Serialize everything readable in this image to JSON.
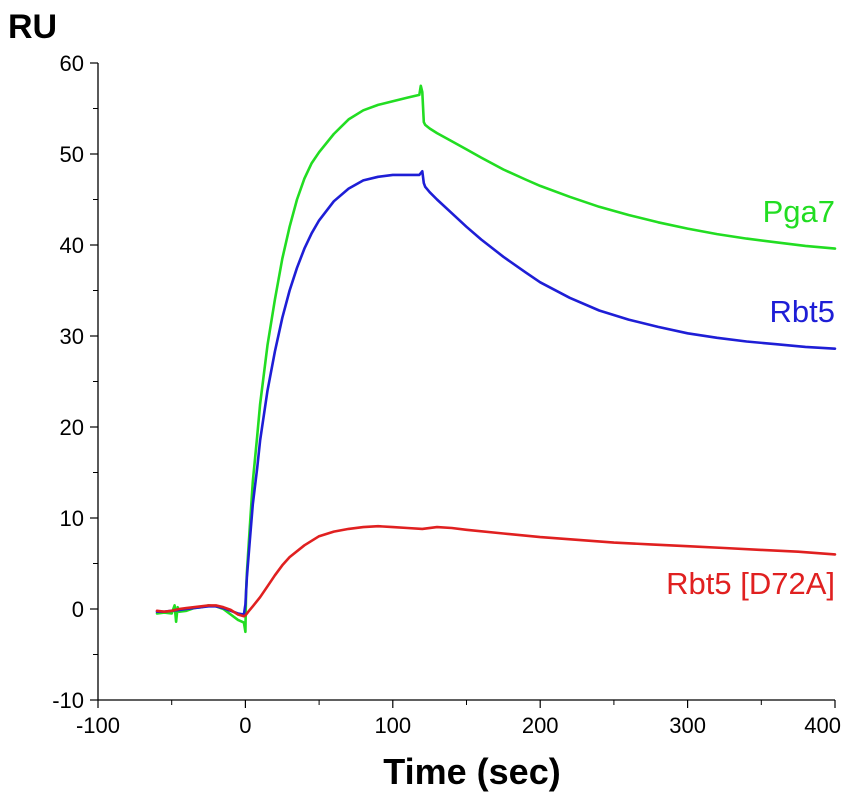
{
  "chart_data": {
    "type": "line",
    "xlabel": "Time (sec)",
    "ylabel": "RU",
    "xlim": [
      -100,
      400
    ],
    "ylim": [
      -10,
      60
    ],
    "x_ticks": [
      -100,
      0,
      100,
      200,
      300,
      400
    ],
    "y_ticks": [
      -10,
      0,
      10,
      20,
      30,
      40,
      50,
      60
    ],
    "grid": false,
    "legend": "inline labels at right end of each curve",
    "series": [
      {
        "name": "Pga7",
        "color": "#22dd22",
        "x": [
          -60,
          -55,
          -50,
          -48,
          -47,
          -46,
          -45,
          -40,
          -35,
          -30,
          -25,
          -20,
          -15,
          -10,
          -5,
          -1,
          0,
          0.5,
          1,
          3,
          5,
          8,
          10,
          15,
          20,
          25,
          30,
          35,
          40,
          45,
          50,
          60,
          70,
          80,
          90,
          100,
          110,
          118,
          119,
          120,
          121,
          122,
          125,
          130,
          140,
          150,
          160,
          175,
          190,
          200,
          220,
          240,
          260,
          280,
          300,
          320,
          340,
          360,
          380,
          400
        ],
        "y": [
          -0.5,
          -0.4,
          -0.5,
          0.4,
          -1.4,
          0.2,
          -0.3,
          -0.2,
          0.1,
          0.2,
          0.4,
          0.3,
          0.0,
          -0.6,
          -1.2,
          -1.5,
          -2.5,
          2.0,
          4.0,
          9.0,
          14.0,
          19.0,
          22.5,
          29.0,
          34.0,
          38.5,
          42.0,
          45.0,
          47.3,
          49.0,
          50.2,
          52.2,
          53.8,
          54.8,
          55.4,
          55.8,
          56.2,
          56.5,
          57.5,
          56.8,
          53.5,
          53.2,
          52.8,
          52.3,
          51.4,
          50.5,
          49.6,
          48.3,
          47.2,
          46.5,
          45.3,
          44.2,
          43.3,
          42.5,
          41.8,
          41.2,
          40.7,
          40.3,
          39.9,
          39.6
        ]
      },
      {
        "name": "Rbt5",
        "color": "#1e1ed6",
        "x": [
          -60,
          -55,
          -50,
          -45,
          -40,
          -35,
          -30,
          -25,
          -20,
          -15,
          -10,
          -5,
          -1,
          0,
          1,
          3,
          5,
          8,
          10,
          15,
          20,
          25,
          30,
          35,
          40,
          45,
          50,
          60,
          70,
          80,
          90,
          100,
          110,
          118,
          120,
          121,
          122,
          125,
          130,
          140,
          150,
          160,
          175,
          190,
          200,
          220,
          240,
          260,
          280,
          300,
          320,
          340,
          360,
          380,
          400
        ],
        "y": [
          -0.3,
          -0.3,
          -0.2,
          -0.1,
          0.0,
          0.1,
          0.2,
          0.3,
          0.3,
          0.1,
          -0.2,
          -0.5,
          -0.6,
          0.5,
          3.5,
          7.5,
          11.5,
          15.5,
          18.5,
          24.0,
          28.3,
          32.0,
          35.0,
          37.5,
          39.6,
          41.3,
          42.7,
          44.8,
          46.2,
          47.1,
          47.5,
          47.7,
          47.7,
          47.7,
          48.1,
          46.8,
          46.4,
          45.8,
          45.0,
          43.5,
          42.0,
          40.6,
          38.7,
          37.0,
          35.9,
          34.2,
          32.8,
          31.8,
          31.0,
          30.3,
          29.8,
          29.4,
          29.1,
          28.8,
          28.6
        ]
      },
      {
        "name": "Rbt5 [D72A]",
        "color": "#e02020",
        "x": [
          -60,
          -55,
          -50,
          -45,
          -40,
          -35,
          -30,
          -25,
          -20,
          -15,
          -10,
          -5,
          -1,
          0,
          2,
          5,
          10,
          15,
          20,
          25,
          30,
          40,
          50,
          60,
          70,
          80,
          90,
          100,
          110,
          120,
          130,
          140,
          150,
          175,
          200,
          225,
          250,
          275,
          300,
          325,
          350,
          375,
          400
        ],
        "y": [
          -0.2,
          -0.3,
          -0.2,
          0.0,
          0.1,
          0.2,
          0.3,
          0.4,
          0.4,
          0.2,
          -0.1,
          -0.6,
          -0.8,
          -0.7,
          -0.3,
          0.3,
          1.3,
          2.5,
          3.7,
          4.8,
          5.7,
          7.0,
          8.0,
          8.5,
          8.8,
          9.0,
          9.1,
          9.0,
          8.9,
          8.8,
          9.0,
          8.9,
          8.7,
          8.3,
          7.9,
          7.6,
          7.3,
          7.1,
          6.9,
          6.7,
          6.5,
          6.3,
          6.0
        ]
      }
    ]
  }
}
